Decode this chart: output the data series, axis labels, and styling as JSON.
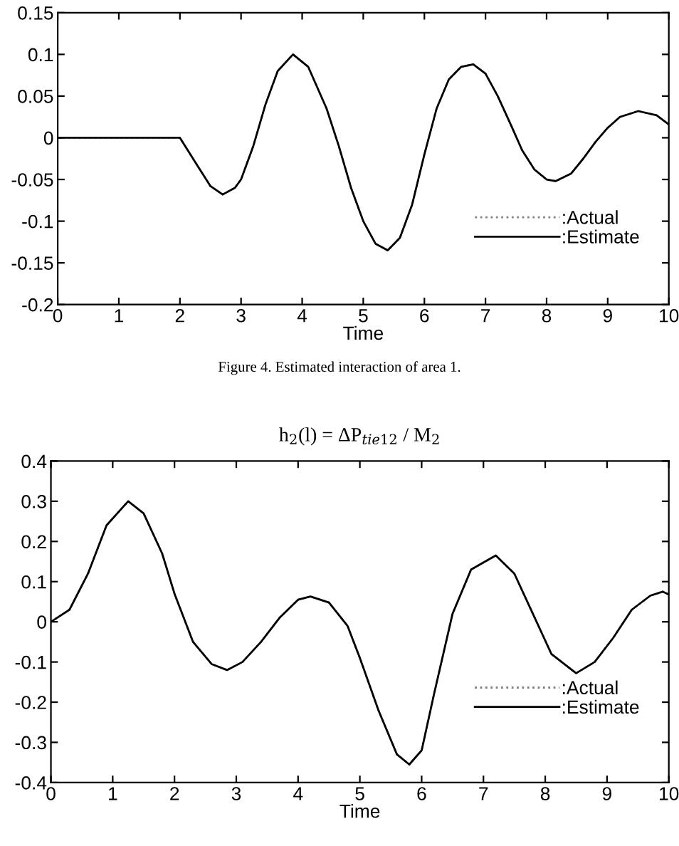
{
  "chart_data": [
    {
      "type": "line",
      "xlabel": "Time",
      "annotations": [
        "Figure 4. Estimated interaction of area 1."
      ],
      "xlim": [
        0,
        10
      ],
      "xticks": [
        0,
        1,
        2,
        3,
        4,
        5,
        6,
        7,
        8,
        9,
        10
      ],
      "ylim": [
        -0.2,
        0.15
      ],
      "yticks": [
        -0.2,
        -0.15,
        -0.1,
        -0.05,
        0,
        0.05,
        0.1,
        0.15
      ],
      "legend": "right",
      "grid": false,
      "x": [
        0,
        1,
        2.0,
        2.3,
        2.5,
        2.7,
        2.9,
        3.0,
        3.2,
        3.4,
        3.6,
        3.85,
        4.1,
        4.4,
        4.6,
        4.8,
        5.0,
        5.2,
        5.4,
        5.6,
        5.8,
        6.0,
        6.2,
        6.4,
        6.6,
        6.8,
        7.0,
        7.2,
        7.4,
        7.6,
        7.8,
        8.0,
        8.15,
        8.4,
        8.6,
        8.8,
        9.0,
        9.2,
        9.5,
        9.8,
        10
      ],
      "series": [
        {
          "name": ":Actual",
          "color": "#808080",
          "line_style": "dotted",
          "values": [
            0,
            0,
            0,
            -0.035,
            -0.058,
            -0.068,
            -0.06,
            -0.05,
            -0.01,
            0.04,
            0.08,
            0.1,
            0.085,
            0.035,
            -0.01,
            -0.06,
            -0.1,
            -0.127,
            -0.135,
            -0.12,
            -0.08,
            -0.02,
            0.035,
            0.07,
            0.085,
            0.088,
            0.077,
            0.05,
            0.018,
            -0.015,
            -0.038,
            -0.05,
            -0.052,
            -0.043,
            -0.025,
            -0.005,
            0.012,
            0.025,
            0.032,
            0.027,
            0.016
          ]
        },
        {
          "name": ":Estimate",
          "color": "#000000",
          "line_style": "solid",
          "values": [
            0,
            0,
            0,
            -0.035,
            -0.058,
            -0.068,
            -0.06,
            -0.05,
            -0.01,
            0.04,
            0.08,
            0.1,
            0.085,
            0.035,
            -0.01,
            -0.06,
            -0.1,
            -0.127,
            -0.135,
            -0.12,
            -0.08,
            -0.02,
            0.035,
            0.07,
            0.085,
            0.088,
            0.077,
            0.05,
            0.018,
            -0.015,
            -0.038,
            -0.05,
            -0.052,
            -0.043,
            -0.025,
            -0.005,
            0.012,
            0.025,
            0.032,
            0.027,
            0.016
          ]
        }
      ]
    },
    {
      "type": "line",
      "title": "h$_{2}$(l) = ΔP$_{tie12}$ / M$_{2}$",
      "xlabel": "Time",
      "xlim": [
        0,
        10
      ],
      "xticks": [
        0,
        1,
        2,
        3,
        4,
        5,
        6,
        7,
        8,
        9,
        10
      ],
      "ylim": [
        -0.4,
        0.4
      ],
      "yticks": [
        -0.4,
        -0.3,
        -0.2,
        -0.1,
        0,
        0.1,
        0.2,
        0.3,
        0.4
      ],
      "legend": "right",
      "grid": false,
      "x": [
        0,
        0.3,
        0.6,
        0.9,
        1.25,
        1.5,
        1.8,
        2.0,
        2.3,
        2.6,
        2.85,
        3.1,
        3.4,
        3.7,
        4.0,
        4.2,
        4.5,
        4.8,
        5.0,
        5.3,
        5.6,
        5.8,
        6.0,
        6.2,
        6.5,
        6.8,
        7.2,
        7.5,
        7.8,
        8.1,
        8.5,
        8.8,
        9.1,
        9.4,
        9.7,
        9.9,
        10
      ],
      "series": [
        {
          "name": ":Actual",
          "color": "#808080",
          "line_style": "dotted",
          "values": [
            0,
            0.03,
            0.12,
            0.24,
            0.3,
            0.27,
            0.17,
            0.07,
            -0.05,
            -0.105,
            -0.12,
            -0.1,
            -0.05,
            0.01,
            0.055,
            0.063,
            0.048,
            -0.01,
            -0.09,
            -0.22,
            -0.33,
            -0.355,
            -0.32,
            -0.18,
            0.02,
            0.13,
            0.165,
            0.12,
            0.02,
            -0.08,
            -0.128,
            -0.1,
            -0.04,
            0.03,
            0.065,
            0.075,
            0.068
          ]
        },
        {
          "name": ":Estimate",
          "color": "#000000",
          "line_style": "solid",
          "values": [
            0,
            0.03,
            0.12,
            0.24,
            0.3,
            0.27,
            0.17,
            0.07,
            -0.05,
            -0.105,
            -0.12,
            -0.1,
            -0.05,
            0.01,
            0.055,
            0.063,
            0.048,
            -0.01,
            -0.09,
            -0.22,
            -0.33,
            -0.355,
            -0.32,
            -0.18,
            0.02,
            0.13,
            0.165,
            0.12,
            0.02,
            -0.08,
            -0.128,
            -0.1,
            -0.04,
            0.03,
            0.065,
            0.075,
            0.068
          ]
        }
      ]
    }
  ]
}
